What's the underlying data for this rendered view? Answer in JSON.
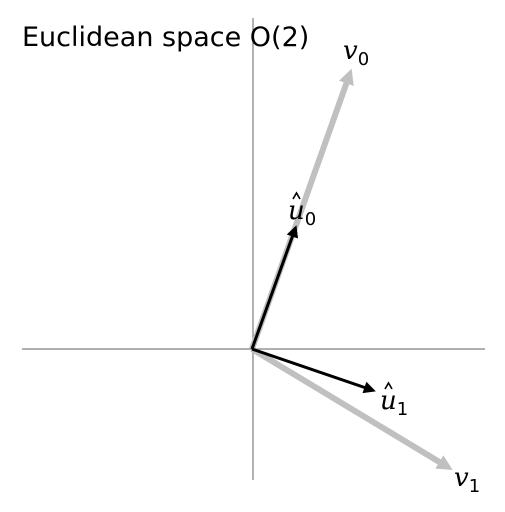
{
  "title": "Euclidean space O(2)",
  "vectors": [
    {
      "label": "v",
      "subscript": "0",
      "hat": false
    },
    {
      "label": "v",
      "subscript": "1",
      "hat": false
    },
    {
      "label": "u",
      "subscript": "0",
      "hat": true
    },
    {
      "label": "u",
      "subscript": "1",
      "hat": true
    }
  ],
  "colors": {
    "axis": "#808080",
    "original_vector": "#c0c0c0",
    "orthonormal_vector": "#000000"
  }
}
